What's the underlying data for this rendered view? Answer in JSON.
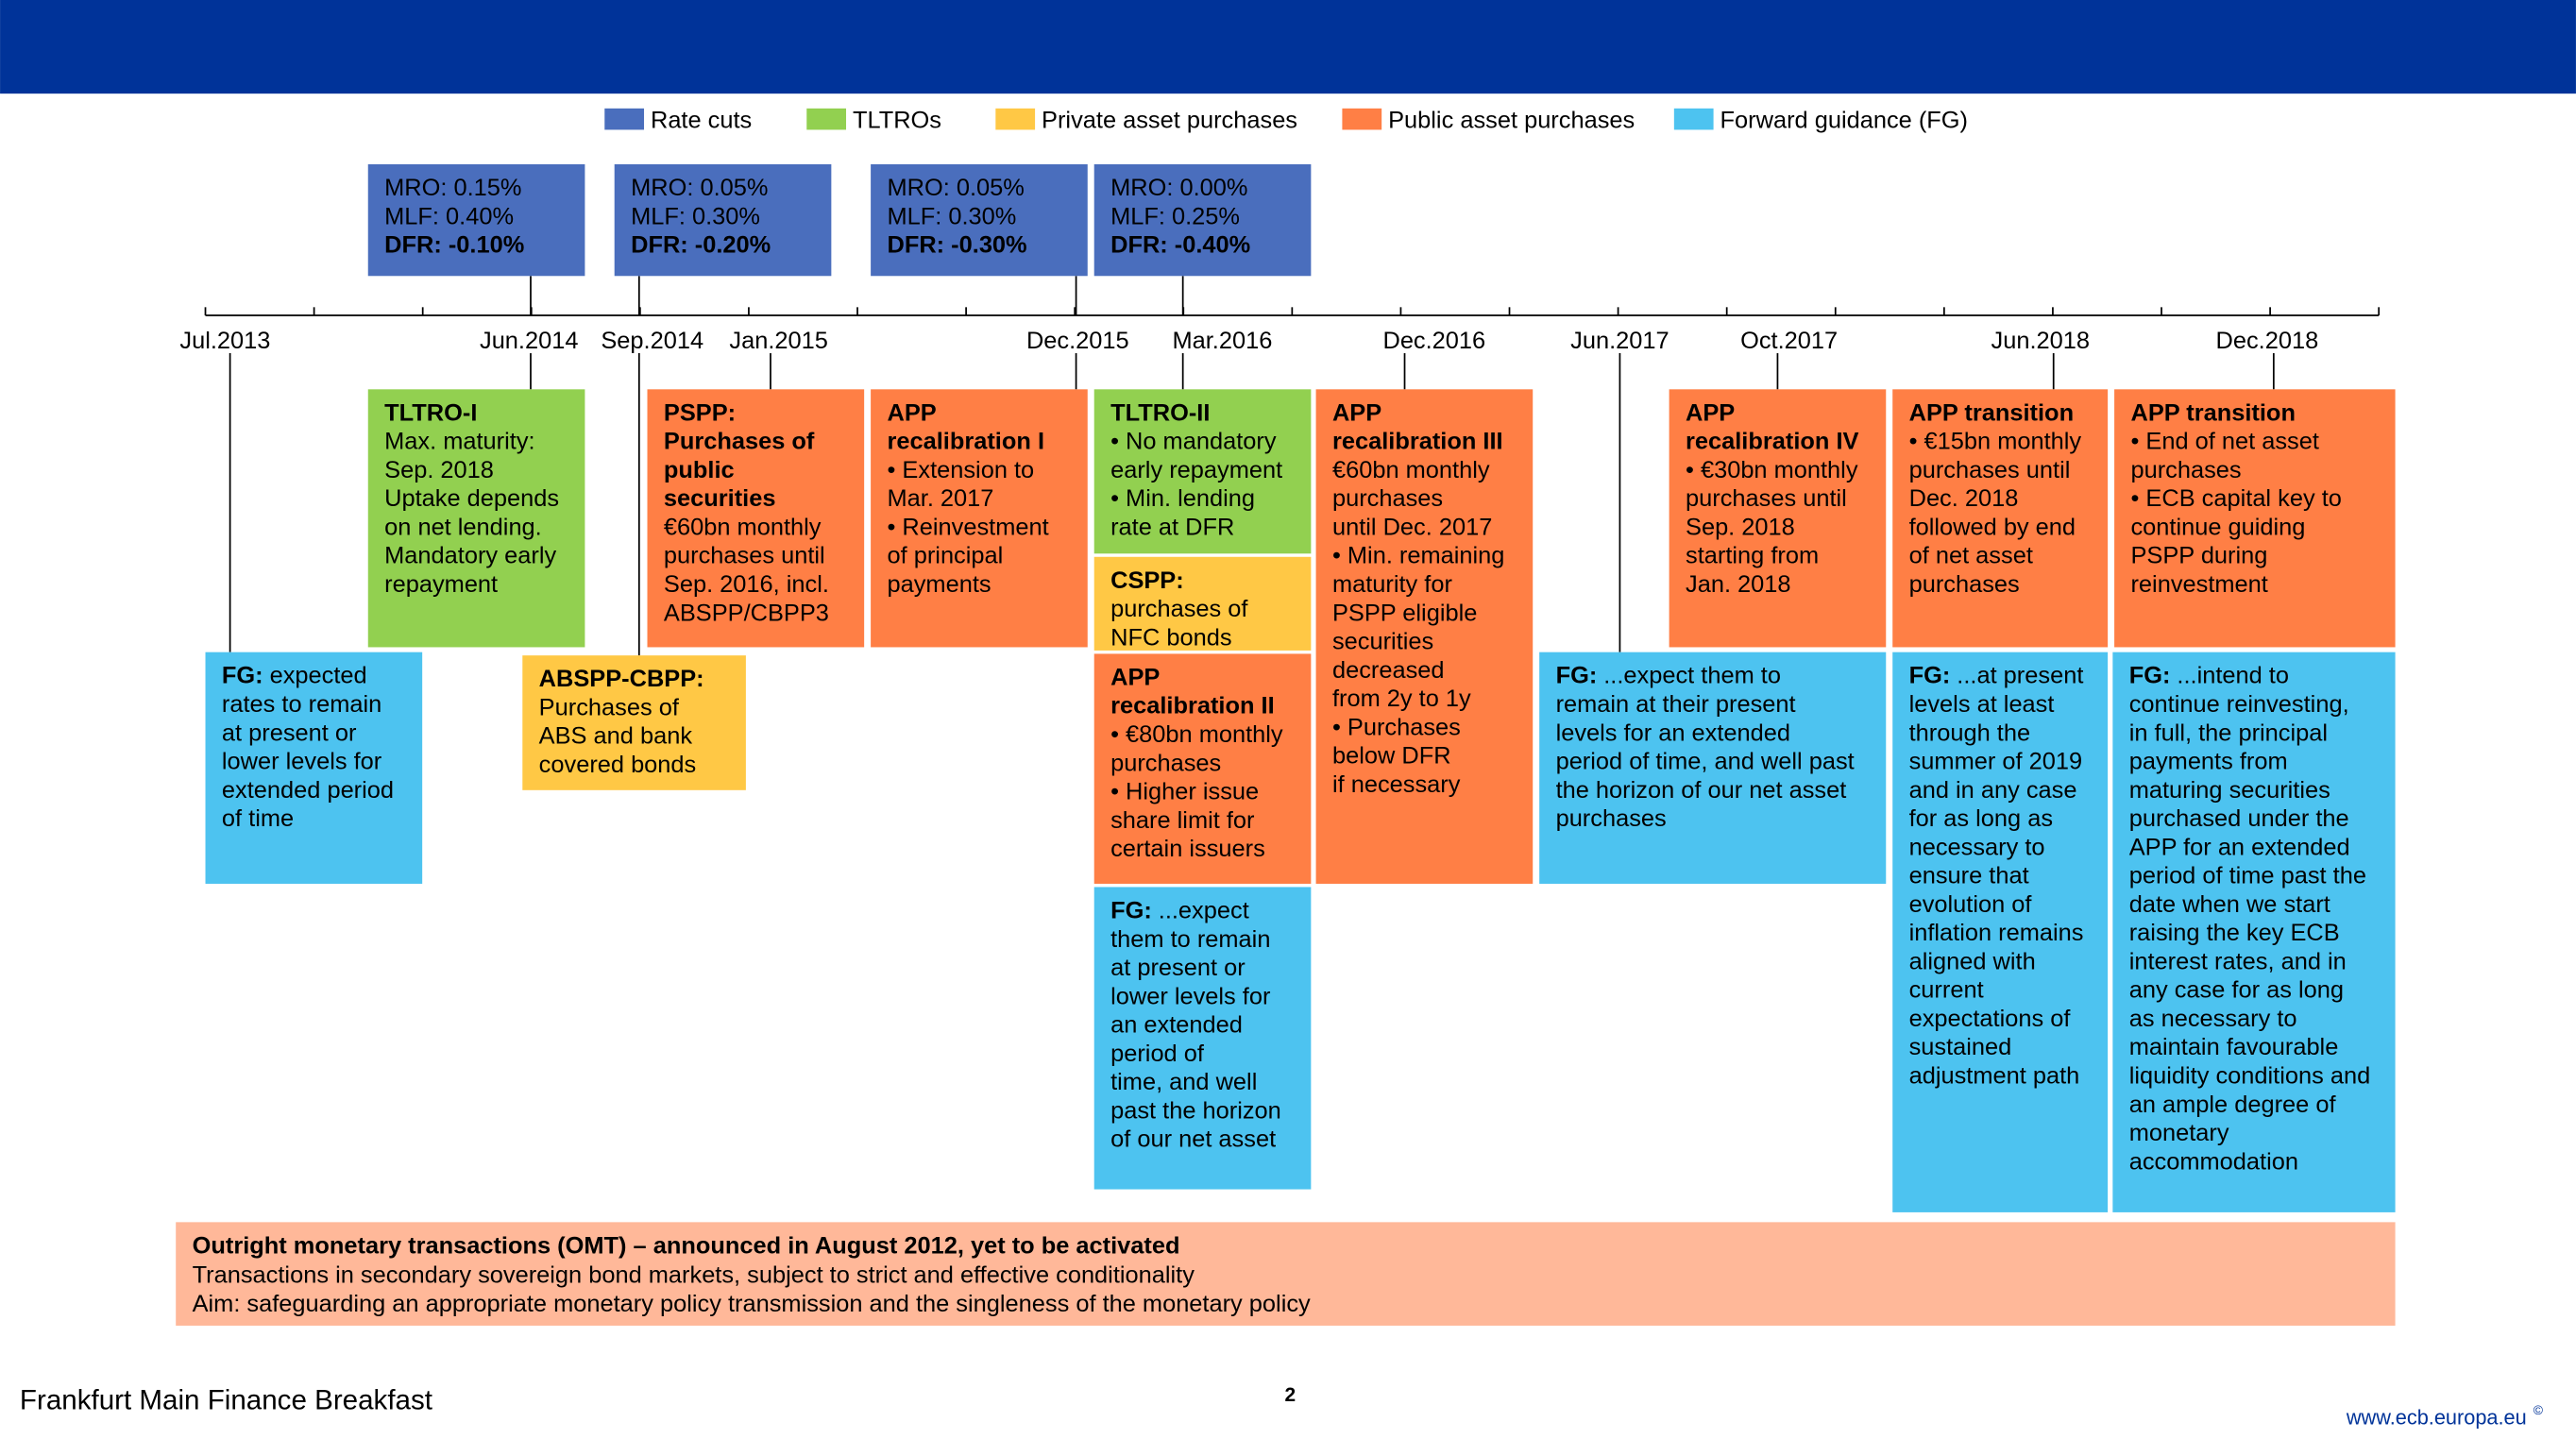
{
  "legend": [
    {
      "label": "Rate cuts",
      "color": "#4a6ebd"
    },
    {
      "label": "TLTROs",
      "color": "#92d050"
    },
    {
      "label": "Private asset purchases",
      "color": "#ffc845"
    },
    {
      "label": "Public asset purchases",
      "color": "#ff7f45"
    },
    {
      "label": "Forward guidance (FG)",
      "color": "#4dc3f0"
    }
  ],
  "rate_boxes": [
    {
      "lines": [
        "MRO: 0.15%",
        "MLF: 0.40%"
      ],
      "bold": "DFR: -0.10%"
    },
    {
      "lines": [
        "MRO: 0.05%",
        "MLF: 0.30%"
      ],
      "bold": "DFR: -0.20%"
    },
    {
      "lines": [
        "MRO: 0.05%",
        "MLF: 0.30%"
      ],
      "bold": "DFR: -0.30%"
    },
    {
      "lines": [
        "MRO: 0.00%",
        "MLF: 0.25%"
      ],
      "bold": "DFR: -0.40%"
    }
  ],
  "timeline": [
    "Jul.2013",
    "Jun.2014",
    "Sep.2014",
    "Jan.2015",
    "Dec.2015",
    "Mar.2016",
    "Dec.2016",
    "Jun.2017",
    "Oct.2017",
    "Jun.2018",
    "Dec.2018"
  ],
  "boxes": [
    {
      "color": "#92d050",
      "bold_lines": [
        "TLTRO-I"
      ],
      "lines": [
        "Max. maturity:",
        "Sep. 2018",
        "Uptake depends",
        "on net lending.",
        "Mandatory early",
        "repayment"
      ]
    },
    {
      "color": "#4dc3f0",
      "lead": "FG:",
      "lines": [
        "expected",
        "rates to remain",
        "at present or",
        "lower levels for",
        "extended period",
        "of time"
      ]
    },
    {
      "color": "#ffc845",
      "bold_lines": [
        "ABSPP-CBPP:"
      ],
      "lines": [
        "Purchases of",
        "ABS and bank",
        "covered bonds"
      ]
    },
    {
      "color": "#ff7f45",
      "bold_lines": [
        "PSPP:",
        "Purchases of",
        "public",
        "securities"
      ],
      "lines": [
        "€60bn monthly",
        "purchases until",
        "Sep. 2016, incl.",
        "ABSPP/CBPP3"
      ]
    },
    {
      "color": "#ff7f45",
      "bold_lines": [
        "APP",
        "recalibration I"
      ],
      "lines": [
        "• Extension to",
        "Mar. 2017",
        "• Reinvestment",
        "of principal",
        "payments"
      ]
    },
    {
      "color": "#92d050",
      "bold_lines": [
        "TLTRO-II"
      ],
      "lines": [
        "• No mandatory",
        "early repayment",
        "• Min. lending",
        "rate at DFR"
      ]
    },
    {
      "color": "#ffc845",
      "bold_lines": [
        "CSPP:"
      ],
      "lines": [
        "purchases of",
        "NFC bonds"
      ]
    },
    {
      "color": "#ff7f45",
      "bold_lines": [
        "APP",
        "recalibration II"
      ],
      "lines": [
        "• €80bn monthly",
        "purchases",
        "• Higher issue",
        "share limit for",
        "certain issuers"
      ]
    },
    {
      "color": "#4dc3f0",
      "lead": "FG:",
      "lines": [
        "...expect",
        "them to remain",
        "at present or",
        "lower levels for",
        "an extended",
        "period of",
        "time, and well",
        "past the horizon",
        "of our net asset"
      ]
    },
    {
      "color": "#ff7f45",
      "bold_lines": [
        "APP",
        "recalibration III"
      ],
      "lines": [
        "€60bn monthly",
        "purchases",
        "until Dec. 2017",
        "• Min. remaining",
        "maturity for",
        "PSPP eligible",
        "securities",
        "decreased",
        "from 2y to 1y",
        "• Purchases",
        "below DFR",
        "if necessary"
      ]
    },
    {
      "color": "#4dc3f0",
      "lead": "FG:",
      "lines": [
        "...expect them to",
        "remain at their present",
        "levels for an extended",
        "period of time, and well past",
        "the horizon of our net asset",
        "purchases"
      ]
    },
    {
      "color": "#ff7f45",
      "bold_lines": [
        "APP",
        "recalibration IV"
      ],
      "lines": [
        "• €30bn monthly",
        "purchases until",
        "Sep. 2018",
        "starting from",
        "Jan. 2018"
      ]
    },
    {
      "color": "#ff7f45",
      "bold_lines": [
        "APP transition"
      ],
      "lines": [
        "• €15bn monthly",
        "purchases until",
        "Dec. 2018",
        "followed by end",
        "of net asset",
        "purchases"
      ]
    },
    {
      "color": "#4dc3f0",
      "lead": "FG:",
      "lines": [
        "...at present",
        "levels at least",
        "through the",
        "summer of 2019",
        "and in any case",
        "for as long as",
        "necessary to",
        "ensure that",
        "evolution of",
        "inflation remains",
        "aligned with",
        "current",
        "expectations of",
        "sustained",
        "adjustment path"
      ]
    },
    {
      "color": "#ff7f45",
      "bold_lines": [
        "APP transition"
      ],
      "lines": [
        "• End of net asset",
        "purchases",
        "• ECB capital key to",
        "continue guiding",
        "PSPP during",
        "reinvestment"
      ]
    },
    {
      "color": "#4dc3f0",
      "lead": "FG:",
      "lines": [
        "...intend to",
        "continue reinvesting,",
        "in full, the principal",
        "payments from",
        "maturing securities",
        "purchased under the",
        "APP for an extended",
        "period of time past the",
        "date when we start",
        "raising the key ECB",
        "interest rates, and in",
        "any case for as long",
        "as necessary to",
        "maintain favourable",
        "liquidity conditions and",
        "an ample degree of",
        "monetary",
        "accommodation"
      ]
    }
  ],
  "omt": {
    "title": "Outright monetary transactions (OMT) – announced in August 2012, yet to be activated",
    "lines": [
      "Transactions in secondary sovereign bond markets, subject to strict and effective conditionality",
      "Aim: safeguarding an appropriate monetary policy transmission and the singleness of the monetary policy"
    ]
  },
  "footer": {
    "left": "Frankfurt Main Finance Breakfast",
    "page": "2",
    "url": "www.ecb.europa.eu",
    "mark": "©"
  }
}
